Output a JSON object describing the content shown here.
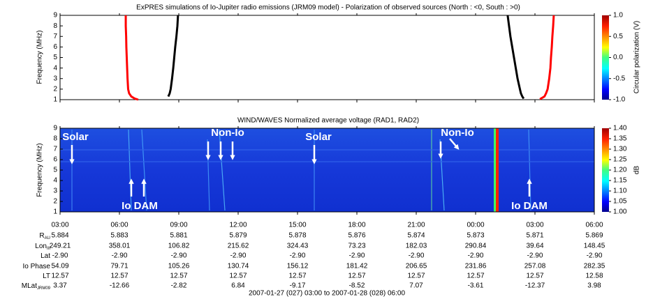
{
  "chart_data": [
    {
      "type": "line",
      "title": "ExPRES simulations of Io-Jupiter radio emissions (JRM09 model) - Polarization of observed sources (North : <0, South : >0)",
      "ylabel": "Frequency (MHz)",
      "xlim": [
        0,
        27
      ],
      "xticks": [
        0,
        3,
        6,
        9,
        12,
        15,
        18,
        21,
        24,
        27
      ],
      "ylim": [
        1,
        9
      ],
      "yticks": [
        1,
        2,
        3,
        4,
        5,
        6,
        7,
        8,
        9
      ],
      "series": [
        {
          "color": "#ff0000",
          "x": [
            3.95,
            3.78,
            3.6,
            3.49,
            3.44,
            3.41,
            3.39,
            3.37,
            3.35,
            3.34,
            3.32,
            3.32
          ],
          "values": [
            1,
            1.1,
            1.3,
            1.6,
            2,
            3,
            4,
            5,
            6,
            7,
            8,
            9
          ]
        },
        {
          "color": "#000000",
          "x": [
            5.47,
            5.54,
            5.59,
            5.66,
            5.72,
            5.77,
            5.82,
            5.88,
            5.93,
            5.96
          ],
          "values": [
            1.3,
            1.6,
            2,
            3,
            4,
            5,
            6,
            7,
            8,
            9
          ]
        },
        {
          "color": "#000000",
          "x": [
            23.43,
            23.36,
            23.29,
            23.24,
            23.12,
            23.03,
            22.94,
            22.85,
            22.76,
            22.69,
            22.62
          ],
          "values": [
            1.1,
            1.3,
            1.6,
            2,
            3,
            4,
            5,
            6,
            7,
            8,
            9
          ]
        },
        {
          "color": "#ff0000",
          "x": [
            24.25,
            24.48,
            24.56,
            24.64,
            24.72,
            24.78,
            24.81,
            24.85,
            24.88,
            24.92,
            24.95
          ],
          "values": [
            1.05,
            1.3,
            1.6,
            2,
            3,
            4,
            5,
            6,
            7,
            8,
            9
          ]
        }
      ],
      "colorbar": {
        "label": "Circular polarization (V)",
        "lim": [
          -1,
          1
        ],
        "ticks": [
          {
            "value": 1,
            "label": "1.0"
          },
          {
            "value": 0.5,
            "label": "0.5"
          },
          {
            "value": 0,
            "label": "0.0"
          },
          {
            "value": -0.5,
            "label": "-0.5"
          },
          {
            "value": -1,
            "label": "-1.0"
          }
        ]
      }
    },
    {
      "type": "image",
      "title": "WIND/WAVES Normalized average voltage (RAD1, RAD2)",
      "ylabel": "Frequency (MHz)",
      "xlim": [
        0,
        27
      ],
      "xticks": [
        {
          "value": 0,
          "label": "03:00"
        },
        {
          "value": 3,
          "label": "06:00"
        },
        {
          "value": 6,
          "label": "09:00"
        },
        {
          "value": 9,
          "label": "12:00"
        },
        {
          "value": 12,
          "label": "15:00"
        },
        {
          "value": 15,
          "label": "18:00"
        },
        {
          "value": 18,
          "label": "21:00"
        },
        {
          "value": 21,
          "label": "00:00"
        },
        {
          "value": 24,
          "label": "03:00"
        },
        {
          "value": 27,
          "label": "06:00"
        }
      ],
      "ylim": [
        1,
        9
      ],
      "yticks": [
        1,
        2,
        3,
        4,
        5,
        6,
        7,
        8,
        9
      ],
      "annotations": [
        "Solar",
        "Non-Io",
        "Solar",
        "Non-Io",
        "Io DAM",
        "Io DAM"
      ],
      "colorbar": {
        "label": "dB",
        "lim": [
          1,
          1.4
        ],
        "ticks": [
          {
            "value": 1.4,
            "label": "1.40"
          },
          {
            "value": 1.35,
            "label": "1.35"
          },
          {
            "value": 1.3,
            "label": "1.30"
          },
          {
            "value": 1.25,
            "label": "1.25"
          },
          {
            "value": 1.2,
            "label": "1.20"
          },
          {
            "value": 1.15,
            "label": "1.15"
          },
          {
            "value": 1.1,
            "label": "1.10"
          },
          {
            "value": 1.05,
            "label": "1.05"
          },
          {
            "value": 1,
            "label": "1.00"
          }
        ]
      }
    }
  ],
  "ephemeris": {
    "rows": [
      {
        "label": "R",
        "sub": "AU",
        "values": [
          "5.884",
          "5.883",
          "5.881",
          "5.879",
          "5.878",
          "5.876",
          "5.874",
          "5.873",
          "5.871",
          "5.869"
        ]
      },
      {
        "label": "Lon",
        "sub": "III",
        "values": [
          "249.21",
          "358.01",
          "106.82",
          "215.62",
          "324.43",
          "73.23",
          "182.03",
          "290.84",
          "39.64",
          "148.45"
        ]
      },
      {
        "label": "Lat",
        "values": [
          "-2.90",
          "-2.90",
          "-2.90",
          "-2.90",
          "-2.90",
          "-2.90",
          "-2.90",
          "-2.90",
          "-2.90",
          "-2.90"
        ]
      },
      {
        "label": "Io Phase",
        "values": [
          "54.09",
          "79.71",
          "105.26",
          "130.74",
          "156.12",
          "181.42",
          "206.65",
          "231.86",
          "257.08",
          "282.35"
        ]
      },
      {
        "label": "LT",
        "values": [
          "12.57",
          "12.57",
          "12.57",
          "12.57",
          "12.57",
          "12.57",
          "12.57",
          "12.57",
          "12.57",
          "12.58"
        ]
      },
      {
        "label": "MLat",
        "sub": "JRM09",
        "values": [
          "3.37",
          "-12.66",
          "-2.82",
          "6.84",
          "-9.17",
          "-8.52",
          "7.07",
          "-3.61",
          "-12.37",
          "3.98"
        ]
      }
    ],
    "footer": "2007-01-27 (027) 03:00 to 2007-01-28 (028) 06:00"
  }
}
